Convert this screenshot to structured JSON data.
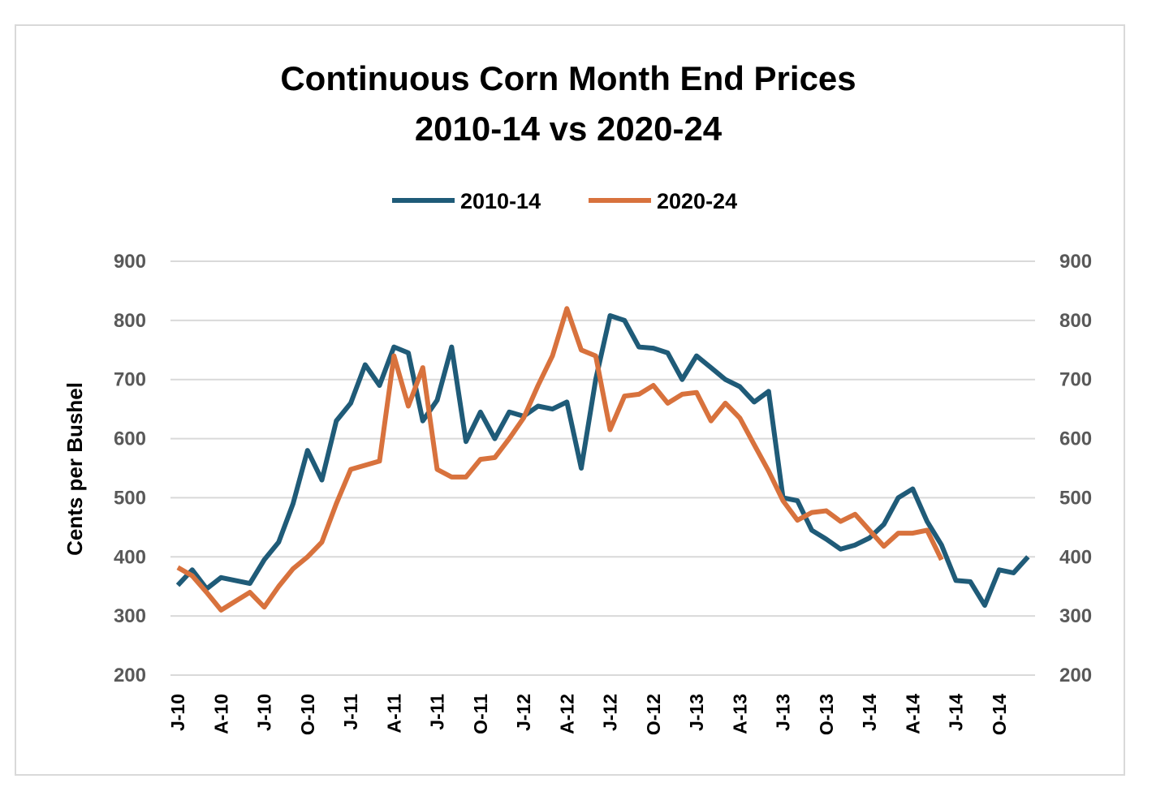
{
  "chart_data": {
    "type": "line",
    "title": "Continuous Corn Month End Prices",
    "subtitle": "2010-14 vs 2020-24",
    "ylabel": "Cents per Bushel",
    "xlabel": "",
    "ylim": [
      200,
      900
    ],
    "yticks": [
      200,
      300,
      400,
      500,
      600,
      700,
      800,
      900
    ],
    "secondary_y_axis": true,
    "grid": true,
    "legend_position": "top",
    "x_tick_labels": [
      "J-10",
      "A-10",
      "J-10",
      "O-10",
      "J-11",
      "A-11",
      "J-11",
      "O-11",
      "J-12",
      "A-12",
      "J-12",
      "O-12",
      "J-13",
      "A-13",
      "J-13",
      "O-13",
      "J-14",
      "A-14",
      "J-14",
      "O-14"
    ],
    "x_tick_every_months": 3,
    "months": 60,
    "series": [
      {
        "name": "2010-14",
        "color": "#1f5b78",
        "values": [
          352,
          378,
          346,
          365,
          360,
          355,
          395,
          425,
          490,
          580,
          530,
          630,
          660,
          725,
          690,
          755,
          745,
          630,
          665,
          755,
          595,
          645,
          600,
          645,
          638,
          655,
          650,
          662,
          550,
          700,
          808,
          800,
          755,
          753,
          745,
          700,
          740,
          720,
          700,
          688,
          662,
          680,
          500,
          495,
          445,
          430,
          413,
          420,
          432,
          455,
          500,
          515,
          460,
          420,
          360,
          358,
          318,
          378,
          373,
          400
        ]
      },
      {
        "name": "2020-24",
        "color": "#d8723d",
        "values": [
          382,
          368,
          340,
          310,
          325,
          340,
          315,
          350,
          380,
          400,
          425,
          490,
          548,
          555,
          562,
          740,
          655,
          720,
          548,
          535,
          535,
          565,
          568,
          600,
          635,
          690,
          740,
          820,
          750,
          740,
          615,
          672,
          675,
          690,
          660,
          675,
          678,
          630,
          660,
          635,
          590,
          545,
          495,
          462,
          475,
          478,
          460,
          472,
          445,
          418,
          440,
          440,
          445,
          395
        ]
      }
    ]
  }
}
